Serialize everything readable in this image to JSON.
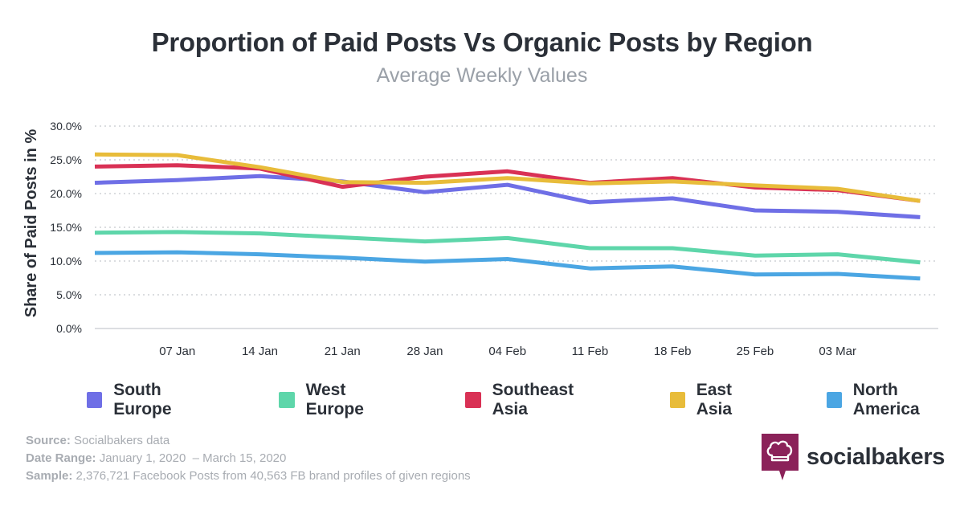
{
  "chart_data": {
    "type": "line",
    "title": "Proportion of Paid Posts Vs Organic Posts by Region",
    "subtitle": "Average Weekly Values",
    "ylabel": "Share of Paid Posts in %",
    "xlabel": "",
    "ylim": [
      0,
      30
    ],
    "y_ticks": [
      "0.0%",
      "5.0%",
      "10.0%",
      "15.0%",
      "20.0%",
      "25.0%",
      "30.0%"
    ],
    "y_tick_values": [
      0,
      5,
      10,
      15,
      20,
      25,
      30
    ],
    "x_ticks": [
      "07 Jan",
      "14 Jan",
      "21 Jan",
      "28 Jan",
      "04 Feb",
      "11 Feb",
      "18 Feb",
      "25 Feb",
      "03 Mar"
    ],
    "x_tick_weeks": [
      1,
      2,
      3,
      4,
      5,
      6,
      7,
      8,
      9
    ],
    "x_weeks": [
      0,
      1,
      2,
      3,
      4,
      5,
      6,
      7,
      8,
      9,
      10
    ],
    "grid": true,
    "legend_position": "bottom",
    "series": [
      {
        "name": "South Europe",
        "color": "#6f6fe6",
        "values": [
          21.6,
          22.0,
          22.6,
          21.8,
          20.2,
          21.3,
          18.7,
          19.3,
          17.5,
          17.3,
          16.5
        ]
      },
      {
        "name": "West Europe",
        "color": "#5ed6aa",
        "values": [
          14.2,
          14.3,
          14.1,
          13.5,
          12.9,
          13.4,
          11.9,
          11.9,
          10.8,
          11.0,
          9.8
        ]
      },
      {
        "name": "Southeast Asia",
        "color": "#d93155",
        "values": [
          24.0,
          24.2,
          23.7,
          21.0,
          22.5,
          23.3,
          21.6,
          22.3,
          20.9,
          20.5,
          18.9
        ]
      },
      {
        "name": "East Asia",
        "color": "#e8bc3a",
        "values": [
          25.8,
          25.7,
          23.9,
          21.7,
          21.6,
          22.3,
          21.5,
          21.8,
          21.2,
          20.7,
          18.9
        ]
      },
      {
        "name": "North America",
        "color": "#4ba6e3",
        "values": [
          11.2,
          11.3,
          11.0,
          10.5,
          9.9,
          10.3,
          8.9,
          9.2,
          8.0,
          8.1,
          7.4
        ]
      }
    ]
  },
  "footer": {
    "source_label": "Source:",
    "source_value": "Socialbakers data",
    "date_label": "Date Range:",
    "date_value": "January 1, 2020  – March 15, 2020",
    "sample_label": "Sample:",
    "sample_value": "2,376,721 Facebook Posts from 40,563 FB brand profiles of given regions"
  },
  "brand": {
    "name": "socialbakers",
    "color": "#8b2259"
  }
}
